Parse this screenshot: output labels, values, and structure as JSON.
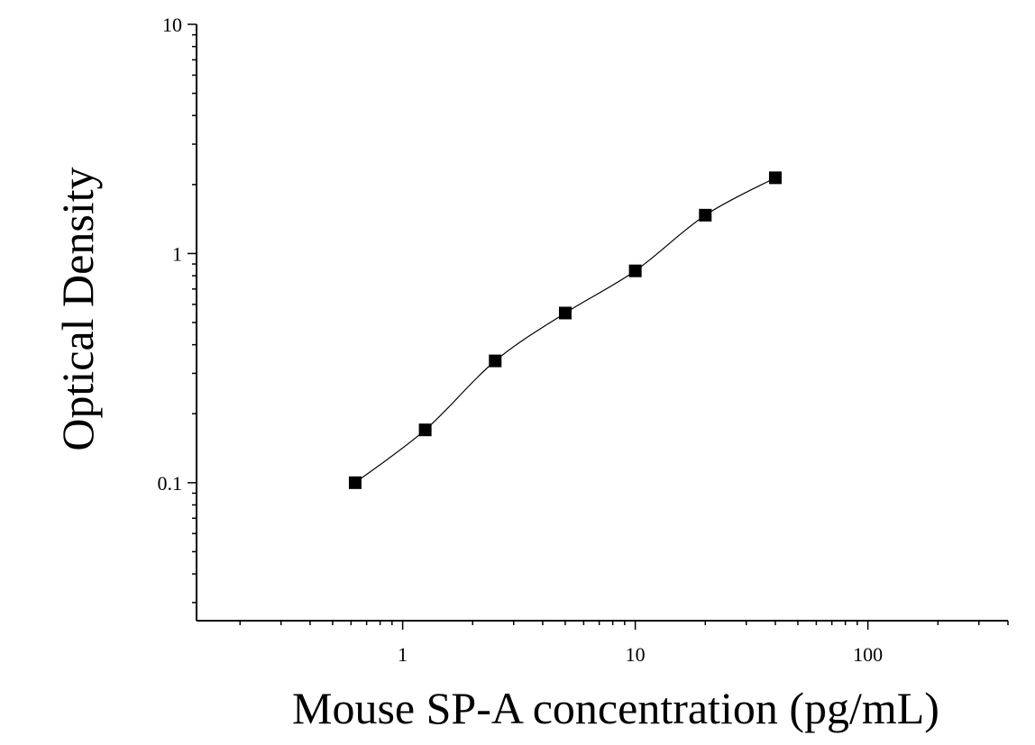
{
  "chart_data": {
    "type": "scatter",
    "title": "",
    "xlabel": "Mouse SP-A concentration (pg/mL)",
    "ylabel": "Optical Density",
    "xscale": "log",
    "yscale": "log",
    "xlim": [
      0.13,
      400
    ],
    "ylim": [
      0.025,
      10
    ],
    "x_ticks": [
      1,
      10,
      100
    ],
    "x_tick_labels": [
      "1",
      "10",
      "100"
    ],
    "y_ticks": [
      0.1,
      1,
      10
    ],
    "y_tick_labels": [
      "0.1",
      "1",
      "10"
    ],
    "grid": false,
    "marker": "square",
    "color": "#000000",
    "series": [
      {
        "points": [
          {
            "x": 0.625,
            "y": 0.1
          },
          {
            "x": 1.25,
            "y": 0.17
          },
          {
            "x": 2.5,
            "y": 0.34
          },
          {
            "x": 5,
            "y": 0.55
          },
          {
            "x": 10,
            "y": 0.84
          },
          {
            "x": 20,
            "y": 1.47
          },
          {
            "x": 40,
            "y": 2.14
          }
        ],
        "fit_curve": true
      }
    ]
  }
}
